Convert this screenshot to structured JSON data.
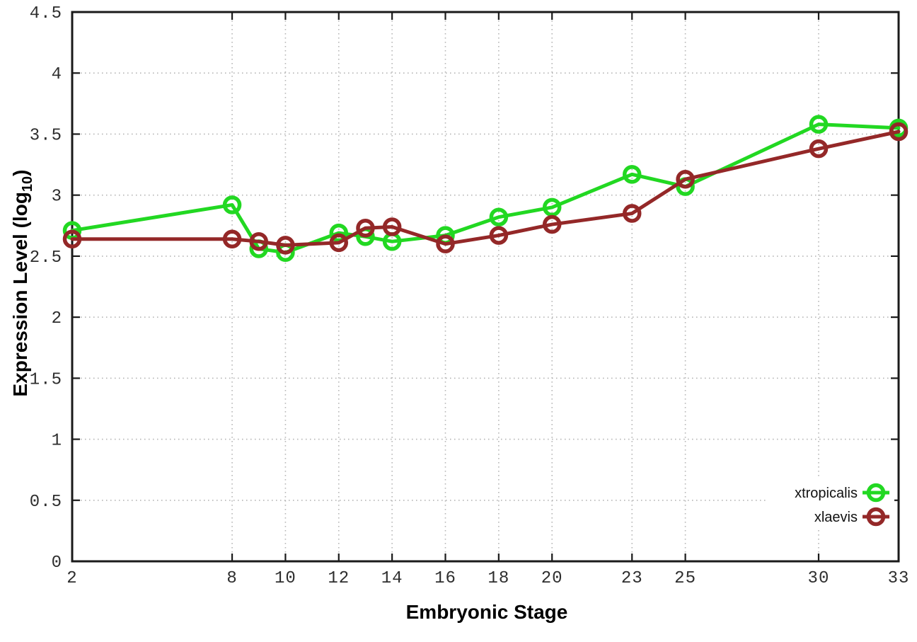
{
  "figure": {
    "background": "#ffffff"
  },
  "chart_data": {
    "type": "line",
    "title": "",
    "xlabel": "Embryonic Stage",
    "ylabel": "Expression Level (log10)",
    "ylabel_parts": {
      "prefix": "Expression Level (log",
      "sub": "10",
      "suffix": ")"
    },
    "xlim": [
      2,
      33
    ],
    "ylim": [
      0,
      4.5
    ],
    "grid": true,
    "legend_position": "bottom-right",
    "x": [
      2,
      8,
      9,
      10,
      12,
      13,
      14,
      16,
      18,
      20,
      23,
      25,
      30,
      33
    ],
    "xtick_values": [
      2,
      8,
      10,
      12,
      14,
      16,
      18,
      20,
      23,
      25,
      30,
      33
    ],
    "xtick_labels": [
      "2",
      "8",
      "10",
      "12",
      "14",
      "16",
      "18",
      "20",
      "23",
      "25",
      "30",
      "33"
    ],
    "ytick_values": [
      0,
      0.5,
      1,
      1.5,
      2,
      2.5,
      3,
      3.5,
      4,
      4.5
    ],
    "ytick_labels": [
      "0",
      "0.5",
      "1",
      "1.5",
      "2",
      "2.5",
      "3",
      "3.5",
      "4",
      "4.5"
    ],
    "series": [
      {
        "name": "xtropicalis",
        "color": "#22d822",
        "values": [
          2.71,
          2.92,
          2.56,
          2.53,
          2.69,
          2.66,
          2.62,
          2.67,
          2.82,
          2.9,
          3.17,
          3.07,
          3.58,
          3.55
        ]
      },
      {
        "name": "xlaevis",
        "color": "#942828",
        "values": [
          2.64,
          2.64,
          2.62,
          2.59,
          2.61,
          2.73,
          2.74,
          2.6,
          2.67,
          2.76,
          2.85,
          3.13,
          3.38,
          3.52
        ]
      }
    ],
    "style_colors": {
      "grid": "#b3b3b3",
      "axis": "#1a1a1a",
      "tick_label": "#2e2e2e",
      "legend_bg": "#ffffff"
    }
  }
}
